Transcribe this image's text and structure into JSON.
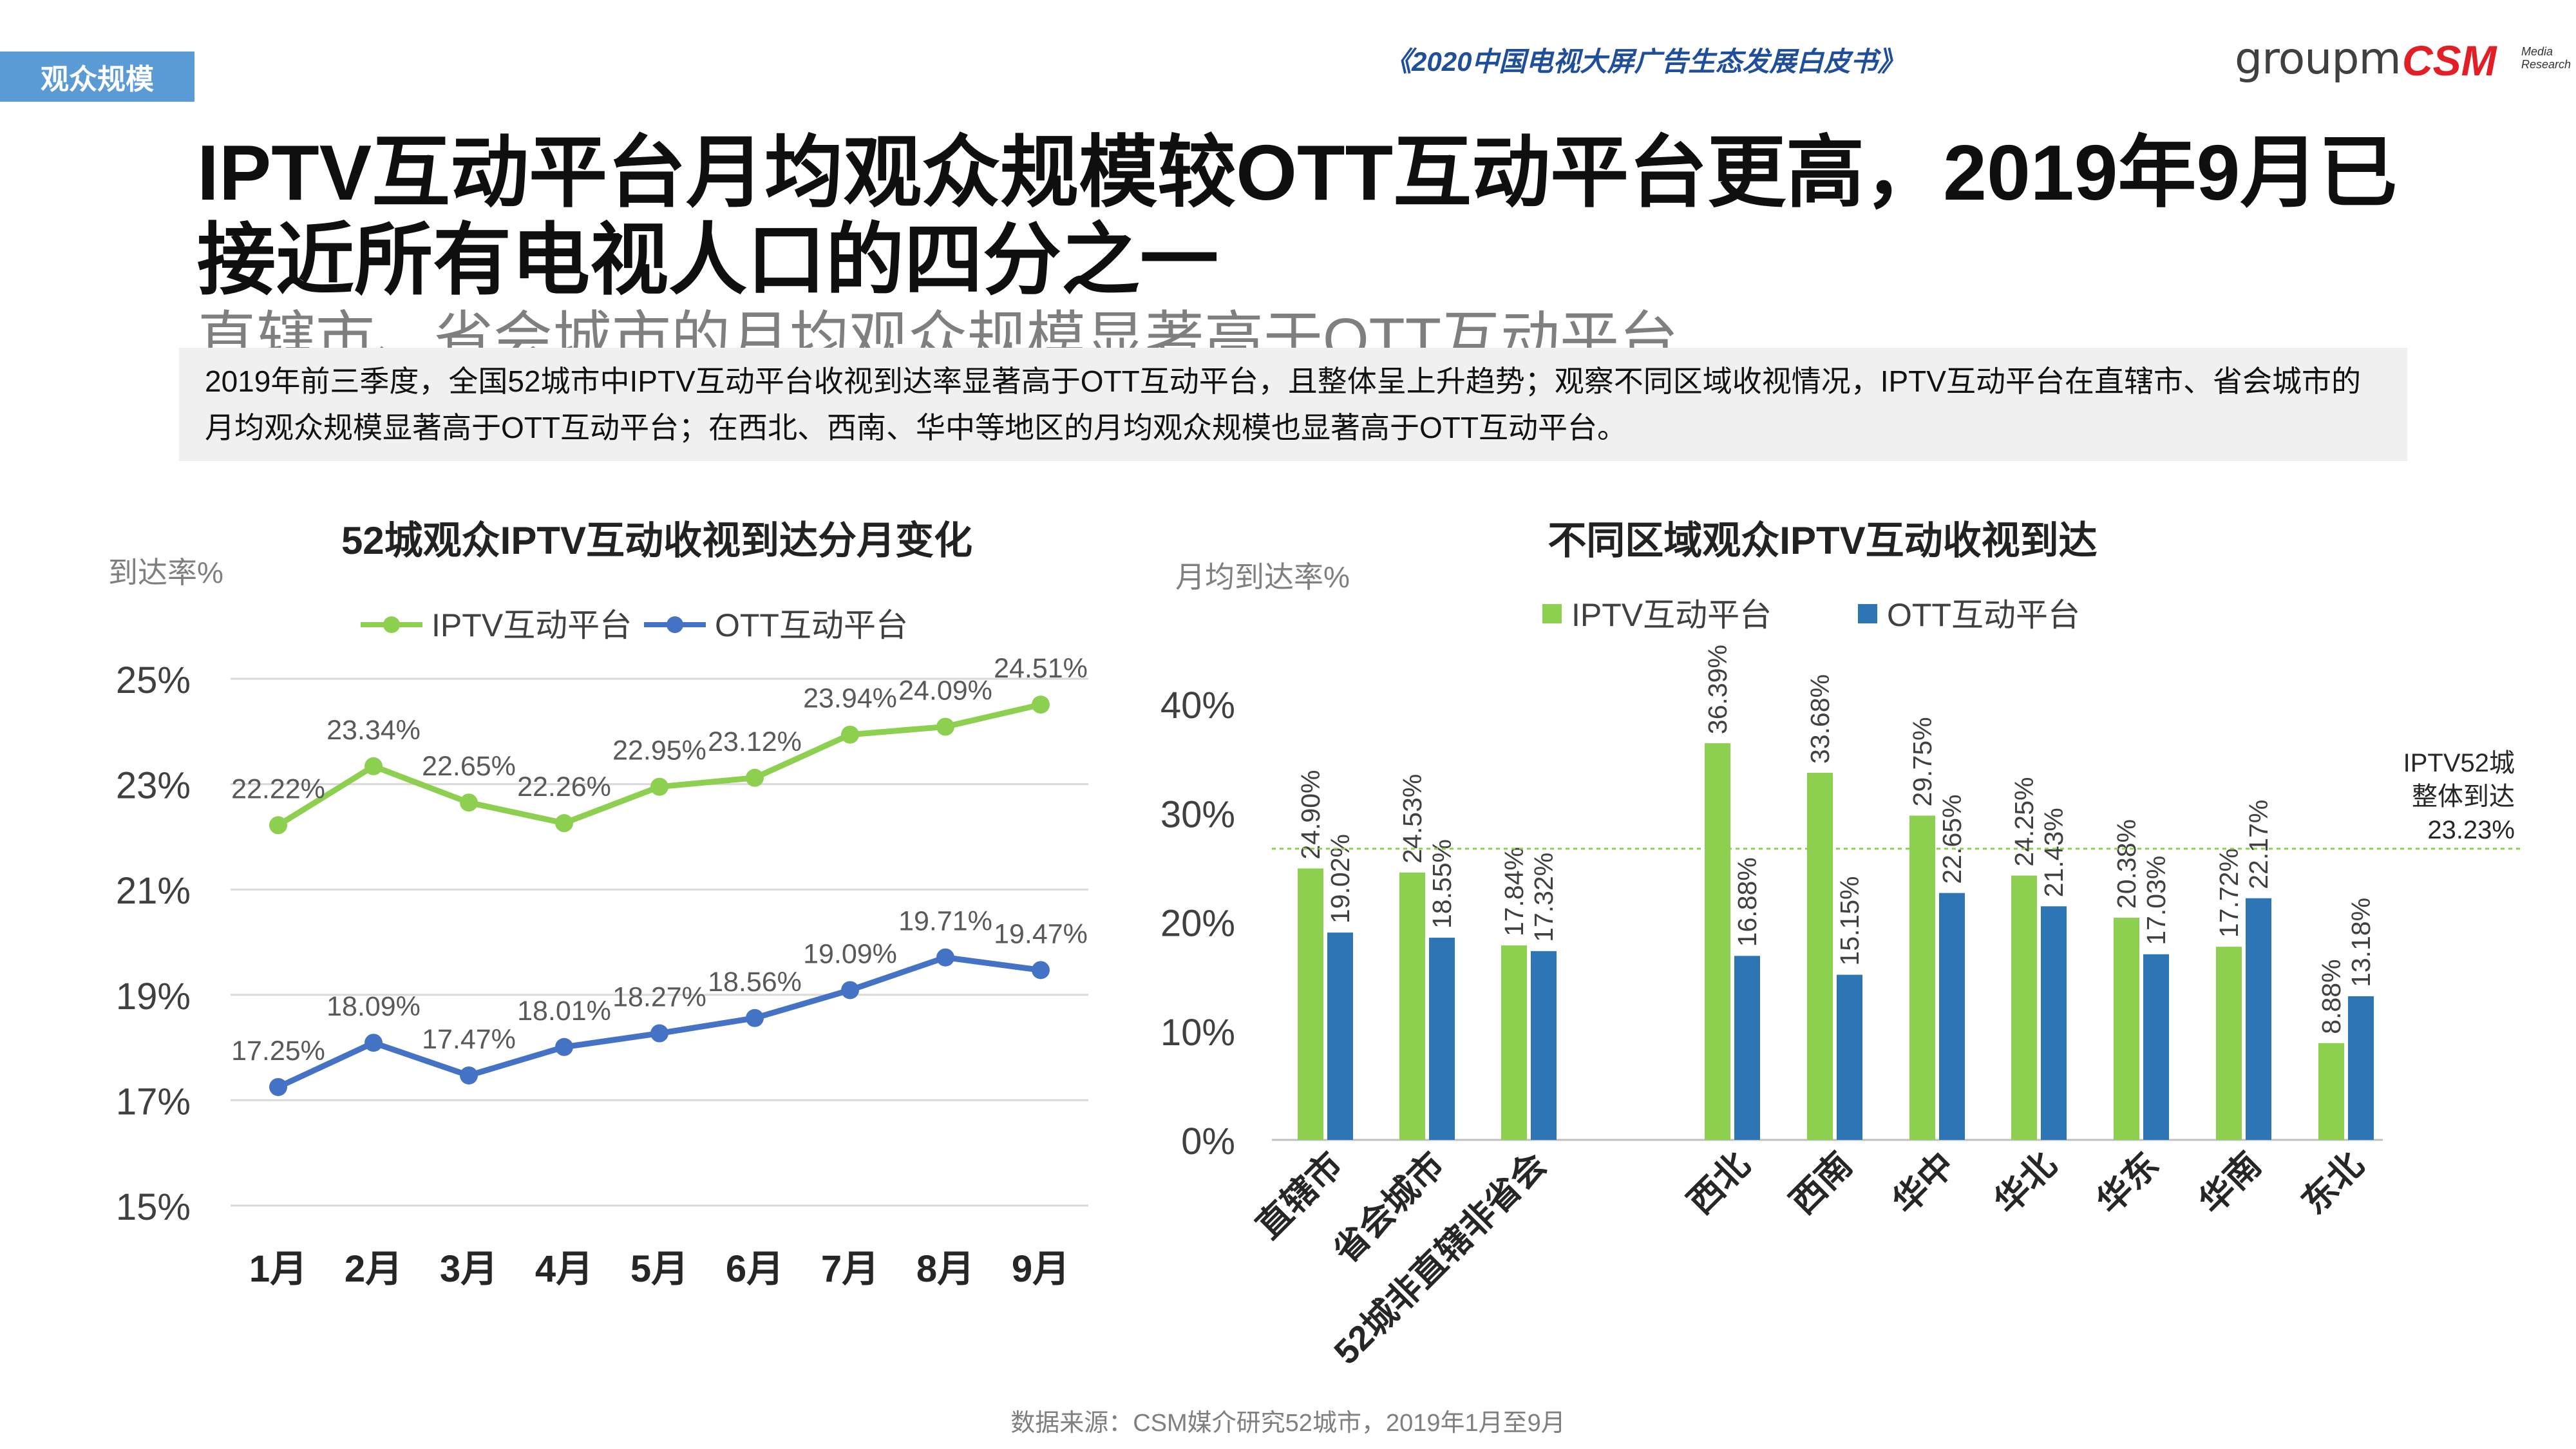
{
  "header": {
    "section_tag": "观众规模",
    "report_title": "《2020中国电视大屏广告生态发展白皮书》",
    "logo_groupm": "groupm",
    "logo_csm": "CSM",
    "logo_csm_sub": "Media Research"
  },
  "headline": "IPTV互动平台月均观众规模较OTT互动平台更高，2019年9月已接近所有电视人口的四分之一",
  "subheadline": "直辖市、省会城市的月均观众规模显著高于OTT互动平台",
  "summary": "2019年前三季度，全国52城市中IPTV互动平台收视到达率显著高于OTT互动平台，且整体呈上升趋势；观察不同区域收视情况，IPTV互动平台在直辖市、省会城市的月均观众规模显著高于OTT互动平台；在西北、西南、华中等地区的月均观众规模也显著高于OTT互动平台。",
  "source": "数据来源：CSM媒介研究52城市，2019年1月至9月",
  "colors": {
    "iptv": "#8dcf4f",
    "ott": "#4472c4",
    "ott_bar": "#2e75b6",
    "accent": "#5b9bd5"
  },
  "chart_data": [
    {
      "type": "line",
      "title": "52城观众IPTV互动收视到达分月变化",
      "ylabel": "到达率%",
      "xlabel": "",
      "categories": [
        "1月",
        "2月",
        "3月",
        "4月",
        "5月",
        "6月",
        "7月",
        "8月",
        "9月"
      ],
      "ylim": [
        15,
        25
      ],
      "yticks": [
        15,
        17,
        19,
        21,
        23,
        25
      ],
      "ytick_labels": [
        "15%",
        "17%",
        "19%",
        "21%",
        "23%",
        "25%"
      ],
      "grid": true,
      "legend": "top",
      "series": [
        {
          "name": "IPTV互动平台",
          "color": "#8dcf4f",
          "values": [
            22.22,
            23.34,
            22.65,
            22.26,
            22.95,
            23.12,
            23.94,
            24.09,
            24.51
          ],
          "labels": [
            "22.22%",
            "23.34%",
            "22.65%",
            "22.26%",
            "22.95%",
            "23.12%",
            "23.94%",
            "24.09%",
            "24.51%"
          ]
        },
        {
          "name": "OTT互动平台",
          "color": "#4472c4",
          "values": [
            17.25,
            18.09,
            17.47,
            18.01,
            18.27,
            18.56,
            19.09,
            19.71,
            19.47
          ],
          "labels": [
            "17.25%",
            "18.09%",
            "17.47%",
            "18.01%",
            "18.27%",
            "18.56%",
            "19.09%",
            "19.71%",
            "19.47%"
          ]
        }
      ]
    },
    {
      "type": "bar",
      "title": "不同区域观众IPTV互动收视到达",
      "ylabel": "月均到达率%",
      "xlabel": "",
      "categories": [
        "直辖市",
        "省会城市",
        "52城非直辖非省会",
        "西北",
        "西南",
        "华中",
        "华北",
        "华东",
        "华南",
        "东北"
      ],
      "ylim": [
        0,
        40
      ],
      "yticks": [
        0,
        10,
        20,
        30,
        40
      ],
      "ytick_labels": [
        "0%",
        "10%",
        "20%",
        "30%",
        "40%"
      ],
      "grid": false,
      "legend": "top",
      "series": [
        {
          "name": "IPTV互动平台",
          "color": "#8dcf4f",
          "values": [
            24.9,
            24.53,
            17.84,
            36.39,
            33.68,
            29.75,
            24.25,
            20.38,
            17.72,
            8.88
          ],
          "labels": [
            "24.90%",
            "24.53%",
            "17.84%",
            "36.39%",
            "33.68%",
            "29.75%",
            "24.25%",
            "20.38%",
            "17.72%",
            "8.88%"
          ]
        },
        {
          "name": "OTT互动平台",
          "color": "#2e75b6",
          "values": [
            19.02,
            18.55,
            17.32,
            16.88,
            15.15,
            22.65,
            21.43,
            17.03,
            22.17,
            13.18
          ],
          "labels": [
            "19.02%",
            "18.55%",
            "17.32%",
            "16.88%",
            "15.15%",
            "22.65%",
            "21.43%",
            "17.03%",
            "22.17%",
            "13.18%"
          ]
        }
      ],
      "reference_line": {
        "value": 23.23,
        "label_lines": [
          "IPTV52城",
          "整体到达",
          "23.23%"
        ]
      }
    }
  ]
}
